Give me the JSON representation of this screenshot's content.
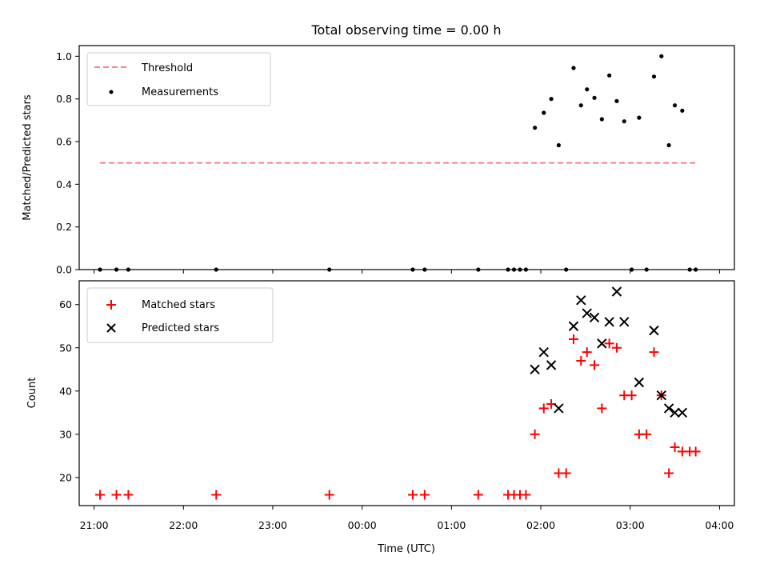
{
  "chart_data": [
    {
      "type": "scatter",
      "title": "Total observing time = 0.00 h",
      "xlabel": "",
      "ylabel": "Matched/Predicted stars",
      "ylim": [
        0,
        1.05
      ],
      "yticks": [
        0.0,
        0.2,
        0.4,
        0.6,
        0.8,
        1.0
      ],
      "ytick_labels": [
        "0.0",
        "0.2",
        "0.4",
        "0.6",
        "0.8",
        "1.0"
      ],
      "xlim": [
        "20:50",
        "04:10"
      ],
      "legend_position": "top-left",
      "grid": false,
      "series": [
        {
          "name": "Threshold",
          "style": "dashed-line",
          "color": "#ff7f7f",
          "points": [
            [
              "21:04",
              0.5
            ],
            [
              "03:44",
              0.5
            ]
          ]
        },
        {
          "name": "Measurements",
          "style": "dot",
          "color": "#000000",
          "points": [
            [
              "21:04",
              0.0
            ],
            [
              "21:15",
              0.0
            ],
            [
              "21:23",
              0.0
            ],
            [
              "22:22",
              0.0
            ],
            [
              "23:38",
              0.0
            ],
            [
              "00:34",
              0.0
            ],
            [
              "00:42",
              0.0
            ],
            [
              "01:18",
              0.0
            ],
            [
              "01:38",
              0.0
            ],
            [
              "01:42",
              0.0
            ],
            [
              "01:46",
              0.0
            ],
            [
              "01:50",
              0.0
            ],
            [
              "01:56",
              0.665
            ],
            [
              "02:02",
              0.735
            ],
            [
              "02:07",
              0.8
            ],
            [
              "02:12",
              0.583
            ],
            [
              "02:17",
              0.0
            ],
            [
              "02:22",
              0.945
            ],
            [
              "02:27",
              0.77
            ],
            [
              "02:31",
              0.845
            ],
            [
              "02:36",
              0.805
            ],
            [
              "02:41",
              0.705
            ],
            [
              "02:46",
              0.91
            ],
            [
              "02:51",
              0.79
            ],
            [
              "02:56",
              0.695
            ],
            [
              "03:01",
              0.0
            ],
            [
              "03:06",
              0.712
            ],
            [
              "03:11",
              0.0
            ],
            [
              "03:16",
              0.905
            ],
            [
              "03:21",
              1.0
            ],
            [
              "03:26",
              0.583
            ],
            [
              "03:30",
              0.77
            ],
            [
              "03:35",
              0.745
            ],
            [
              "03:40",
              0.0
            ],
            [
              "03:44",
              0.0
            ]
          ]
        }
      ]
    },
    {
      "type": "scatter",
      "title": "",
      "xlabel": "Time (UTC)",
      "ylabel": "Count",
      "ylim": [
        13.5,
        65.5
      ],
      "yticks": [
        20,
        30,
        40,
        50,
        60
      ],
      "ytick_labels": [
        "20",
        "30",
        "40",
        "50",
        "60"
      ],
      "xlim": [
        "20:50",
        "04:10"
      ],
      "xticks": [
        "21:00",
        "22:00",
        "23:00",
        "00:00",
        "01:00",
        "02:00",
        "03:00",
        "04:00"
      ],
      "xtick_labels": [
        "21:00",
        "22:00",
        "23:00",
        "00:00",
        "01:00",
        "02:00",
        "03:00",
        "04:00"
      ],
      "legend_position": "top-left",
      "grid": false,
      "series": [
        {
          "name": "Matched stars",
          "style": "plus",
          "color": "#ff0000",
          "points": [
            [
              "21:04",
              16
            ],
            [
              "21:15",
              16
            ],
            [
              "21:23",
              16
            ],
            [
              "22:22",
              16
            ],
            [
              "23:38",
              16
            ],
            [
              "00:34",
              16
            ],
            [
              "00:42",
              16
            ],
            [
              "01:18",
              16
            ],
            [
              "01:38",
              16
            ],
            [
              "01:42",
              16
            ],
            [
              "01:46",
              16
            ],
            [
              "01:50",
              16
            ],
            [
              "01:56",
              30
            ],
            [
              "02:02",
              36
            ],
            [
              "02:07",
              37
            ],
            [
              "02:12",
              21
            ],
            [
              "02:17",
              21
            ],
            [
              "02:22",
              52
            ],
            [
              "02:27",
              47
            ],
            [
              "02:31",
              49
            ],
            [
              "02:36",
              46
            ],
            [
              "02:41",
              36
            ],
            [
              "02:46",
              51
            ],
            [
              "02:51",
              50
            ],
            [
              "02:56",
              39
            ],
            [
              "03:01",
              39
            ],
            [
              "03:06",
              30
            ],
            [
              "03:11",
              30
            ],
            [
              "03:16",
              49
            ],
            [
              "03:21",
              39
            ],
            [
              "03:26",
              21
            ],
            [
              "03:30",
              27
            ],
            [
              "03:35",
              26
            ],
            [
              "03:40",
              26
            ],
            [
              "03:44",
              26
            ]
          ]
        },
        {
          "name": "Predicted stars",
          "style": "x",
          "color": "#000000",
          "points": [
            [
              "01:56",
              45
            ],
            [
              "02:02",
              49
            ],
            [
              "02:07",
              46
            ],
            [
              "02:12",
              36
            ],
            [
              "02:22",
              55
            ],
            [
              "02:27",
              61
            ],
            [
              "02:31",
              58
            ],
            [
              "02:36",
              57
            ],
            [
              "02:41",
              51
            ],
            [
              "02:46",
              56
            ],
            [
              "02:51",
              63
            ],
            [
              "02:56",
              56
            ],
            [
              "03:06",
              42
            ],
            [
              "03:16",
              54
            ],
            [
              "03:21",
              39
            ],
            [
              "03:26",
              36
            ],
            [
              "03:30",
              35
            ],
            [
              "03:35",
              35
            ]
          ]
        }
      ]
    }
  ]
}
